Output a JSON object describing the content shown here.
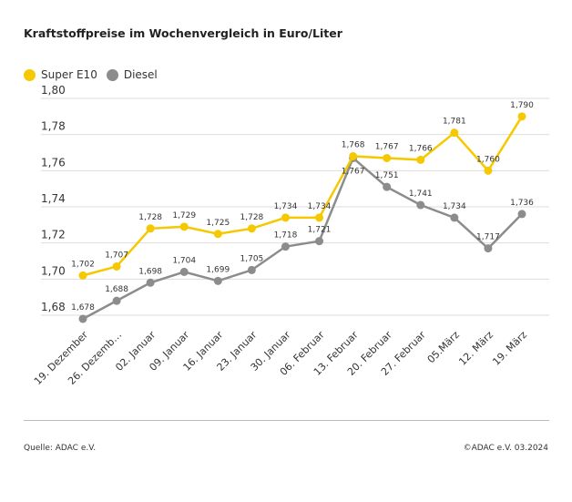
{
  "title": "Kraftstoffpreise im Wochenvergleich in Euro/Liter",
  "footer": {
    "source": "Quelle: ADAC e.V.",
    "copyright": "©ADAC e.V. 03.2024"
  },
  "colors": {
    "super": "#f5c800",
    "diesel": "#8c8c8c"
  },
  "chart_data": {
    "type": "line",
    "title": "Kraftstoffpreise im Wochenvergleich in Euro/Liter",
    "categories": [
      "19. Dezember",
      "26. Dezemb…",
      "02. Januar",
      "09. Januar",
      "16. Januar",
      "23. Januar",
      "30. Januar",
      "06. Februar",
      "13. Februar",
      "20. Februar",
      "27. Februar",
      "05.März",
      "12. März",
      "19. März"
    ],
    "series": [
      {
        "name": "Super E10",
        "color": "#f5c800",
        "values": [
          1.702,
          1.707,
          1.728,
          1.729,
          1.725,
          1.728,
          1.734,
          1.734,
          1.768,
          1.767,
          1.766,
          1.781,
          1.76,
          1.79
        ],
        "labels": [
          "1,702",
          "1,707",
          "1,728",
          "1,729",
          "1,725",
          "1,728",
          "1,734",
          "1,734",
          "1,768",
          "1,767",
          "1,766",
          "1,781",
          "1,760",
          "1,790"
        ]
      },
      {
        "name": "Diesel",
        "color": "#8c8c8c",
        "values": [
          1.678,
          1.688,
          1.698,
          1.704,
          1.699,
          1.705,
          1.718,
          1.721,
          1.767,
          1.751,
          1.741,
          1.734,
          1.717,
          1.736
        ],
        "labels": [
          "1,678",
          "1,688",
          "1,698",
          "1,704",
          "1,699",
          "1,705",
          "1,718",
          "1,721",
          "1,767",
          "1,751",
          "1,741",
          "1,734",
          "1,717",
          "1,736"
        ]
      }
    ],
    "yticks": [
      1.8,
      1.78,
      1.76,
      1.74,
      1.72,
      1.7,
      1.68
    ],
    "ytick_labels": [
      "1,80",
      "1,78",
      "1,76",
      "1,74",
      "1,72",
      "1,70",
      "1,68"
    ],
    "ylim": [
      1.68,
      1.8
    ],
    "grid": true,
    "legend": "top-left"
  }
}
